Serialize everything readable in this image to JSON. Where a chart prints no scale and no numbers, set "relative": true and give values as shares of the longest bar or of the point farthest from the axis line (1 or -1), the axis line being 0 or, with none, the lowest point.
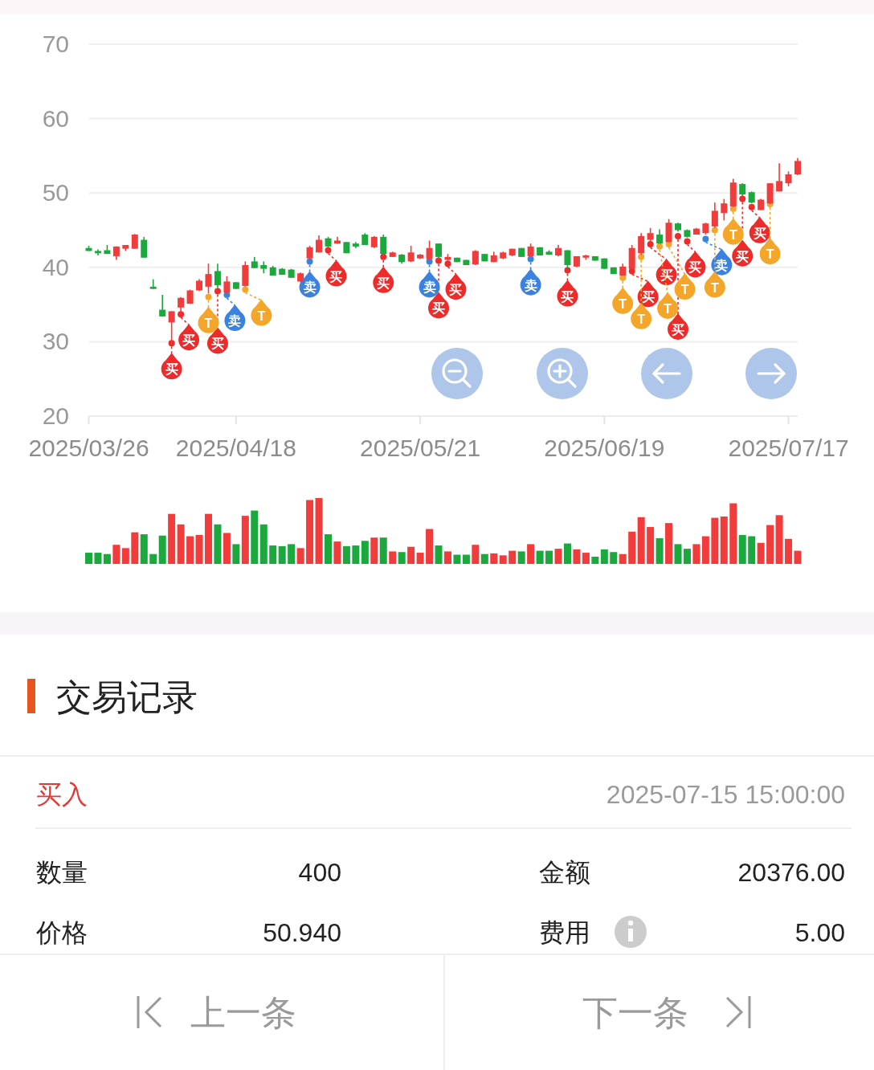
{
  "chart_data": [
    {
      "type": "candlestick",
      "ylim": [
        20,
        70
      ],
      "yticks": [
        20,
        30,
        40,
        50,
        60,
        70
      ],
      "grid": "y",
      "categories": [
        "2025/03/26",
        null,
        null,
        null,
        null,
        null,
        null,
        null,
        null,
        null,
        null,
        null,
        null,
        null,
        null,
        null,
        "2025/04/18",
        null,
        null,
        null,
        null,
        null,
        null,
        null,
        null,
        null,
        null,
        null,
        null,
        null,
        null,
        null,
        null,
        null,
        null,
        null,
        "2025/05/21",
        null,
        null,
        null,
        null,
        null,
        null,
        null,
        null,
        null,
        null,
        null,
        null,
        null,
        null,
        null,
        null,
        null,
        null,
        null,
        "2025/06/19",
        null,
        null,
        null,
        null,
        null,
        null,
        null,
        null,
        null,
        null,
        null,
        null,
        null,
        null,
        null,
        null,
        null,
        null,
        null,
        "2025/07/17",
        null
      ],
      "ohlc": [
        [
          42.6,
          42.9,
          42.2,
          42.2
        ],
        [
          42.2,
          42.4,
          41.6,
          41.9
        ],
        [
          42.3,
          43.0,
          41.8,
          41.8
        ],
        [
          41.5,
          42.8,
          41.0,
          42.8
        ],
        [
          42.5,
          43.0,
          42.2,
          43.0
        ],
        [
          42.5,
          44.5,
          42.5,
          44.4
        ],
        [
          43.7,
          44.1,
          41.3,
          41.3
        ],
        [
          37.4,
          38.4,
          37.1,
          37.1
        ],
        [
          34.3,
          36.3,
          33.4,
          33.4
        ],
        [
          32.6,
          34.1,
          29.7,
          34.1
        ],
        [
          34.6,
          36.0,
          33.7,
          35.9
        ],
        [
          35.1,
          37.0,
          35.1,
          36.9
        ],
        [
          36.9,
          38.4,
          36.8,
          38.2
        ],
        [
          37.4,
          40.5,
          36.5,
          39.1
        ],
        [
          39.5,
          40.5,
          37.2,
          37.6
        ],
        [
          36.6,
          38.8,
          36.5,
          38.1
        ],
        [
          38.0,
          38.0,
          37.1,
          37.1
        ],
        [
          37.5,
          40.8,
          37.4,
          40.3
        ],
        [
          40.8,
          41.4,
          39.9,
          39.9
        ],
        [
          40.3,
          40.8,
          39.2,
          39.8
        ],
        [
          40.0,
          40.2,
          38.9,
          38.9
        ],
        [
          39.8,
          39.9,
          39.0,
          39.0
        ],
        [
          39.7,
          39.8,
          38.6,
          38.6
        ],
        [
          38.1,
          39.3,
          38.0,
          39.2
        ],
        [
          41.2,
          42.9,
          41.0,
          42.7
        ],
        [
          42.0,
          44.3,
          42.0,
          43.7
        ],
        [
          43.9,
          44.1,
          42.7,
          42.8
        ],
        [
          43.2,
          44.1,
          43.2,
          43.6
        ],
        [
          43.4,
          43.4,
          41.9,
          41.9
        ],
        [
          43.2,
          43.4,
          42.6,
          42.8
        ],
        [
          44.4,
          44.6,
          43.0,
          43.0
        ],
        [
          42.7,
          44.2,
          42.6,
          44.1
        ],
        [
          44.1,
          44.4,
          41.7,
          41.8
        ],
        [
          41.4,
          42.1,
          41.4,
          42.0
        ],
        [
          41.7,
          41.8,
          40.5,
          40.7
        ],
        [
          40.8,
          42.9,
          40.7,
          42.0
        ],
        [
          41.2,
          41.8,
          41.1,
          41.7
        ],
        [
          41.1,
          43.6,
          41.0,
          42.6
        ],
        [
          43.2,
          43.2,
          41.2,
          41.4
        ],
        [
          41.0,
          41.8,
          40.9,
          41.4
        ],
        [
          41.3,
          41.3,
          40.7,
          40.7
        ],
        [
          41.0,
          41.0,
          40.3,
          40.3
        ],
        [
          40.4,
          42.3,
          40.3,
          42.2
        ],
        [
          41.8,
          41.8,
          40.8,
          40.8
        ],
        [
          40.7,
          42.1,
          40.7,
          41.6
        ],
        [
          41.2,
          42.1,
          41.1,
          42.0
        ],
        [
          41.6,
          42.5,
          41.5,
          42.5
        ],
        [
          42.6,
          42.6,
          41.4,
          41.4
        ],
        [
          41.5,
          43.2,
          41.4,
          42.8
        ],
        [
          42.7,
          42.7,
          41.6,
          41.6
        ],
        [
          42.1,
          42.3,
          41.7,
          41.7
        ],
        [
          41.6,
          43.0,
          41.5,
          42.6
        ],
        [
          42.3,
          42.3,
          40.0,
          40.3
        ],
        [
          40.1,
          41.5,
          40.0,
          41.5
        ],
        [
          41.3,
          41.7,
          41.0,
          41.6
        ],
        [
          41.5,
          41.5,
          40.9,
          40.9
        ],
        [
          41.2,
          41.2,
          39.8,
          39.8
        ],
        [
          40.0,
          40.0,
          39.1,
          39.1
        ],
        [
          38.9,
          40.5,
          38.9,
          40.1
        ],
        [
          39.8,
          43.0,
          39.8,
          42.6
        ],
        [
          41.9,
          44.6,
          41.7,
          44.2
        ],
        [
          43.7,
          45.3,
          43.5,
          44.6
        ],
        [
          44.4,
          45.1,
          43.2,
          43.2
        ],
        [
          43.4,
          46.5,
          43.4,
          46.0
        ],
        [
          45.9,
          46.0,
          44.8,
          45.0
        ],
        [
          45.0,
          45.1,
          44.0,
          44.1
        ],
        [
          44.4,
          45.3,
          44.4,
          45.2
        ],
        [
          44.6,
          46.0,
          44.4,
          45.9
        ],
        [
          45.5,
          48.7,
          45.3,
          47.6
        ],
        [
          47.3,
          49.2,
          46.3,
          48.6
        ],
        [
          48.2,
          51.9,
          48.1,
          51.4
        ],
        [
          51.2,
          51.3,
          49.6,
          49.8
        ],
        [
          50.1,
          50.2,
          48.6,
          48.7
        ],
        [
          47.7,
          49.2,
          47.7,
          49.1
        ],
        [
          48.6,
          51.3,
          48.5,
          51.3
        ],
        [
          50.2,
          54.0,
          50.2,
          51.6
        ],
        [
          51.3,
          52.9,
          50.9,
          52.5
        ],
        [
          52.5,
          54.7,
          52.4,
          54.3
        ]
      ],
      "colors": [
        "#1ba83d",
        "#1ba83d",
        "#1ba83d",
        "#f23b3b",
        "#f23b3b",
        "#f23b3b",
        "#1ba83d",
        "#1ba83d",
        "#1ba83d",
        "#f23b3b",
        "#f23b3b",
        "#f23b3b",
        "#f23b3b",
        "#f23b3b",
        "#1ba83d",
        "#f23b3b",
        "#1ba83d",
        "#f23b3b",
        "#1ba83d",
        "#1ba83d",
        "#1ba83d",
        "#1ba83d",
        "#1ba83d",
        "#f23b3b",
        "#f23b3b",
        "#f23b3b",
        "#1ba83d",
        "#f23b3b",
        "#1ba83d",
        "#1ba83d",
        "#1ba83d",
        "#f23b3b",
        "#1ba83d",
        "#f23b3b",
        "#1ba83d",
        "#f23b3b",
        "#f23b3b",
        "#f23b3b",
        "#1ba83d",
        "#f23b3b",
        "#1ba83d",
        "#1ba83d",
        "#f23b3b",
        "#1ba83d",
        "#f23b3b",
        "#f23b3b",
        "#f23b3b",
        "#1ba83d",
        "#f23b3b",
        "#1ba83d",
        "#1ba83d",
        "#f23b3b",
        "#1ba83d",
        "#f23b3b",
        "#f23b3b",
        "#1ba83d",
        "#1ba83d",
        "#1ba83d",
        "#f23b3b",
        "#f23b3b",
        "#f23b3b",
        "#f23b3b",
        "#1ba83d",
        "#f23b3b",
        "#1ba83d",
        "#1ba83d",
        "#f23b3b",
        "#f23b3b",
        "#f23b3b",
        "#f23b3b",
        "#f23b3b",
        "#1ba83d",
        "#1ba83d",
        "#f23b3b",
        "#f23b3b",
        "#f23b3b",
        "#f23b3b",
        "#f23b3b"
      ],
      "series": [
        {
          "type": "scatter",
          "marker": "circle",
          "color": "#ee2b2b",
          "values": [
            null,
            null,
            null,
            null,
            null,
            null,
            null,
            null,
            null,
            29.8,
            33.7,
            null,
            null,
            null,
            36.8,
            null,
            null,
            null,
            null,
            null,
            null,
            null,
            null,
            null,
            null,
            null,
            42.3,
            null,
            null,
            null,
            null,
            null,
            41.4,
            null,
            null,
            null,
            null,
            null,
            40.9,
            40.5,
            null,
            null,
            null,
            null,
            null,
            null,
            null,
            null,
            null,
            null,
            null,
            null,
            39.6,
            null,
            null,
            null,
            null,
            null,
            null,
            39.5,
            null,
            43.1,
            null,
            null,
            44.2,
            43.5,
            null,
            null,
            null,
            null,
            null,
            49.2,
            48.1,
            null,
            null,
            null,
            null,
            null
          ],
          "value_labels": [
            null,
            null,
            null,
            null,
            null,
            null,
            null,
            null,
            null,
            "买",
            "买",
            null,
            null,
            null,
            "买",
            null,
            null,
            null,
            null,
            null,
            null,
            null,
            null,
            null,
            null,
            null,
            "买",
            null,
            null,
            null,
            null,
            null,
            "买",
            null,
            null,
            null,
            null,
            null,
            "买",
            "买",
            null,
            null,
            null,
            null,
            null,
            null,
            null,
            null,
            null,
            null,
            null,
            null,
            "买",
            null,
            null,
            null,
            null,
            null,
            null,
            "买",
            null,
            "买",
            null,
            null,
            "买",
            "买",
            null,
            null,
            null,
            null,
            null,
            "买",
            "买",
            null,
            null,
            null,
            null,
            null
          ]
        },
        {
          "type": "scatter",
          "marker": "circle",
          "color": "#3b82e0",
          "values": [
            null,
            null,
            null,
            null,
            null,
            null,
            null,
            null,
            null,
            null,
            null,
            null,
            null,
            null,
            null,
            36.3,
            null,
            null,
            null,
            null,
            null,
            null,
            null,
            null,
            40.8,
            null,
            null,
            null,
            null,
            null,
            null,
            null,
            null,
            null,
            null,
            null,
            null,
            40.8,
            null,
            null,
            null,
            null,
            null,
            null,
            null,
            null,
            null,
            null,
            41.1,
            null,
            null,
            null,
            null,
            null,
            null,
            null,
            null,
            null,
            null,
            null,
            null,
            null,
            null,
            null,
            null,
            null,
            null,
            43.8,
            null,
            null,
            null,
            null,
            null,
            null,
            null,
            null,
            null,
            null
          ],
          "value_labels": [
            null,
            null,
            null,
            null,
            null,
            null,
            null,
            null,
            null,
            null,
            null,
            null,
            null,
            null,
            null,
            "卖",
            null,
            null,
            null,
            null,
            null,
            null,
            null,
            null,
            "卖",
            null,
            null,
            null,
            null,
            null,
            null,
            null,
            null,
            null,
            null,
            null,
            null,
            "卖",
            null,
            null,
            null,
            null,
            null,
            null,
            null,
            null,
            null,
            null,
            "卖",
            null,
            null,
            null,
            null,
            null,
            null,
            null,
            null,
            null,
            null,
            null,
            null,
            null,
            null,
            null,
            null,
            null,
            null,
            "卖",
            null,
            null,
            null,
            null,
            null,
            null,
            null,
            null,
            null,
            null
          ]
        },
        {
          "type": "scatter",
          "marker": "circle",
          "color": "#f4a62a",
          "values": [
            null,
            null,
            null,
            null,
            null,
            null,
            null,
            null,
            null,
            null,
            null,
            null,
            null,
            36.0,
            null,
            null,
            null,
            37.0,
            null,
            null,
            null,
            null,
            null,
            null,
            null,
            null,
            null,
            null,
            null,
            null,
            null,
            null,
            null,
            null,
            null,
            null,
            null,
            null,
            null,
            null,
            null,
            null,
            null,
            null,
            null,
            null,
            null,
            null,
            null,
            null,
            null,
            null,
            null,
            null,
            null,
            null,
            null,
            null,
            38.6,
            null,
            41.4,
            null,
            42.8,
            43.1,
            null,
            null,
            null,
            null,
            45.0,
            null,
            47.9,
            null,
            null,
            null,
            48.5,
            null,
            null,
            null
          ],
          "value_labels": [
            null,
            null,
            null,
            null,
            null,
            null,
            null,
            null,
            null,
            null,
            null,
            null,
            null,
            "T",
            null,
            null,
            null,
            "T",
            null,
            null,
            null,
            null,
            null,
            null,
            null,
            null,
            null,
            null,
            null,
            null,
            null,
            null,
            null,
            null,
            null,
            null,
            null,
            null,
            null,
            null,
            null,
            null,
            null,
            null,
            null,
            null,
            null,
            null,
            null,
            null,
            null,
            null,
            null,
            null,
            null,
            null,
            null,
            null,
            "T",
            null,
            "T",
            null,
            "T",
            "T",
            null,
            null,
            null,
            null,
            "T",
            null,
            "T",
            null,
            null,
            null,
            "T",
            null,
            null,
            null
          ]
        }
      ]
    },
    {
      "type": "bar",
      "relative": true,
      "categories": [
        null,
        null,
        null,
        null,
        null,
        null,
        null,
        null,
        null,
        null,
        null,
        null,
        null,
        null,
        null,
        null,
        null,
        null,
        null,
        null,
        null,
        null,
        null,
        null,
        null,
        null,
        null,
        null,
        null,
        null,
        null,
        null,
        null,
        null,
        null,
        null,
        null,
        null,
        null,
        null,
        null,
        null,
        null,
        null,
        null,
        null,
        null,
        null,
        null,
        null,
        null,
        null,
        null,
        null,
        null,
        null,
        null,
        null,
        null,
        null,
        null,
        null,
        null,
        null,
        null,
        null,
        null,
        null,
        null,
        null,
        null,
        null,
        null,
        null,
        null,
        null,
        null,
        null
      ],
      "values": [
        0.17,
        0.17,
        0.15,
        0.29,
        0.24,
        0.48,
        0.45,
        0.15,
        0.43,
        0.76,
        0.6,
        0.42,
        0.44,
        0.76,
        0.6,
        0.47,
        0.3,
        0.73,
        0.81,
        0.6,
        0.28,
        0.27,
        0.3,
        0.24,
        0.97,
        1,
        0.45,
        0.34,
        0.27,
        0.28,
        0.35,
        0.4,
        0.4,
        0.19,
        0.18,
        0.26,
        0.17,
        0.53,
        0.28,
        0.19,
        0.14,
        0.14,
        0.29,
        0.15,
        0.16,
        0.13,
        0.2,
        0.19,
        0.3,
        0.2,
        0.2,
        0.23,
        0.31,
        0.22,
        0.17,
        0.11,
        0.22,
        0.18,
        0.15,
        0.49,
        0.71,
        0.56,
        0.39,
        0.62,
        0.3,
        0.23,
        0.3,
        0.42,
        0.7,
        0.72,
        0.92,
        0.44,
        0.42,
        0.32,
        0.59,
        0.74,
        0.38,
        0.2
      ],
      "colors": [
        "#1ba83d",
        "#1ba83d",
        "#1ba83d",
        "#f23b3b",
        "#f23b3b",
        "#f23b3b",
        "#1ba83d",
        "#1ba83d",
        "#1ba83d",
        "#f23b3b",
        "#f23b3b",
        "#f23b3b",
        "#f23b3b",
        "#f23b3b",
        "#1ba83d",
        "#f23b3b",
        "#1ba83d",
        "#f23b3b",
        "#1ba83d",
        "#1ba83d",
        "#1ba83d",
        "#1ba83d",
        "#1ba83d",
        "#f23b3b",
        "#f23b3b",
        "#f23b3b",
        "#1ba83d",
        "#f23b3b",
        "#1ba83d",
        "#1ba83d",
        "#1ba83d",
        "#f23b3b",
        "#1ba83d",
        "#f23b3b",
        "#1ba83d",
        "#f23b3b",
        "#f23b3b",
        "#f23b3b",
        "#1ba83d",
        "#f23b3b",
        "#1ba83d",
        "#1ba83d",
        "#f23b3b",
        "#1ba83d",
        "#f23b3b",
        "#f23b3b",
        "#f23b3b",
        "#1ba83d",
        "#f23b3b",
        "#1ba83d",
        "#1ba83d",
        "#f23b3b",
        "#1ba83d",
        "#f23b3b",
        "#f23b3b",
        "#1ba83d",
        "#1ba83d",
        "#1ba83d",
        "#f23b3b",
        "#f23b3b",
        "#f23b3b",
        "#f23b3b",
        "#1ba83d",
        "#f23b3b",
        "#1ba83d",
        "#1ba83d",
        "#f23b3b",
        "#f23b3b",
        "#f23b3b",
        "#f23b3b",
        "#f23b3b",
        "#1ba83d",
        "#1ba83d",
        "#f23b3b",
        "#f23b3b",
        "#f23b3b",
        "#f23b3b",
        "#f23b3b"
      ]
    },
    {
      "type": "other",
      "title": "交易记录",
      "annotations": [
        "买入",
        "2025-07-15 15:00:00",
        "数量",
        "400",
        "金额",
        "20376.00",
        "价格",
        "50.940",
        "费用",
        "5.00",
        "上一条",
        "下一条"
      ]
    }
  ]
}
